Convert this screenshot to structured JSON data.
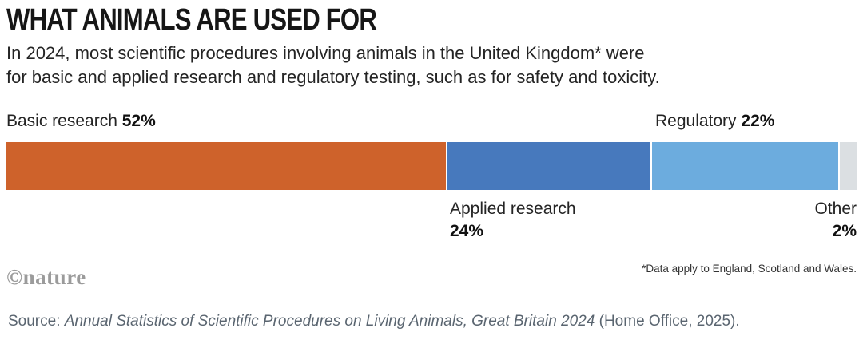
{
  "header": {
    "title": "WHAT ANIMALS ARE USED FOR",
    "subtitle_line1": "In 2024, most scientific procedures involving animals in the United Kingdom* were",
    "subtitle_line2": "for basic and applied research and regulatory testing, such as for safety and toxicity."
  },
  "chart_data": {
    "type": "bar",
    "subtype": "horizontal-stacked-percentage",
    "title": "WHAT ANIMALS ARE USED FOR",
    "total": 100,
    "unit": "%",
    "categories": [
      "Basic research",
      "Applied research",
      "Regulatory",
      "Other"
    ],
    "values": [
      52,
      24,
      22,
      2
    ],
    "segments": [
      {
        "label": "Basic research",
        "value": 52,
        "display": "52%",
        "color": "#CE622B"
      },
      {
        "label": "Applied research",
        "value": 24,
        "display": "24%",
        "color": "#4779BD"
      },
      {
        "label": "Regulatory",
        "value": 22,
        "display": "22%",
        "color": "#6CACDE"
      },
      {
        "label": "Other",
        "value": 2,
        "display": "2%",
        "color": "#DBDFE2"
      }
    ],
    "legend_position": "labels-adjacent-to-segments",
    "grid": false
  },
  "labels": {
    "basic_name": "Basic research ",
    "basic_value": "52%",
    "regulatory_name": "Regulatory ",
    "regulatory_value": "22%",
    "applied_name": "Applied research",
    "applied_value": "24%",
    "other_name": "Other",
    "other_value": "2%"
  },
  "footnote": "*Data apply to England, Scotland and Wales.",
  "logo_text": "©nature",
  "source": {
    "prefix": "Source: ",
    "italic_title": "Annual Statistics of Scientific Procedures on Living Animals, Great Britain 2024",
    "suffix": " (Home Office, 2025)."
  }
}
